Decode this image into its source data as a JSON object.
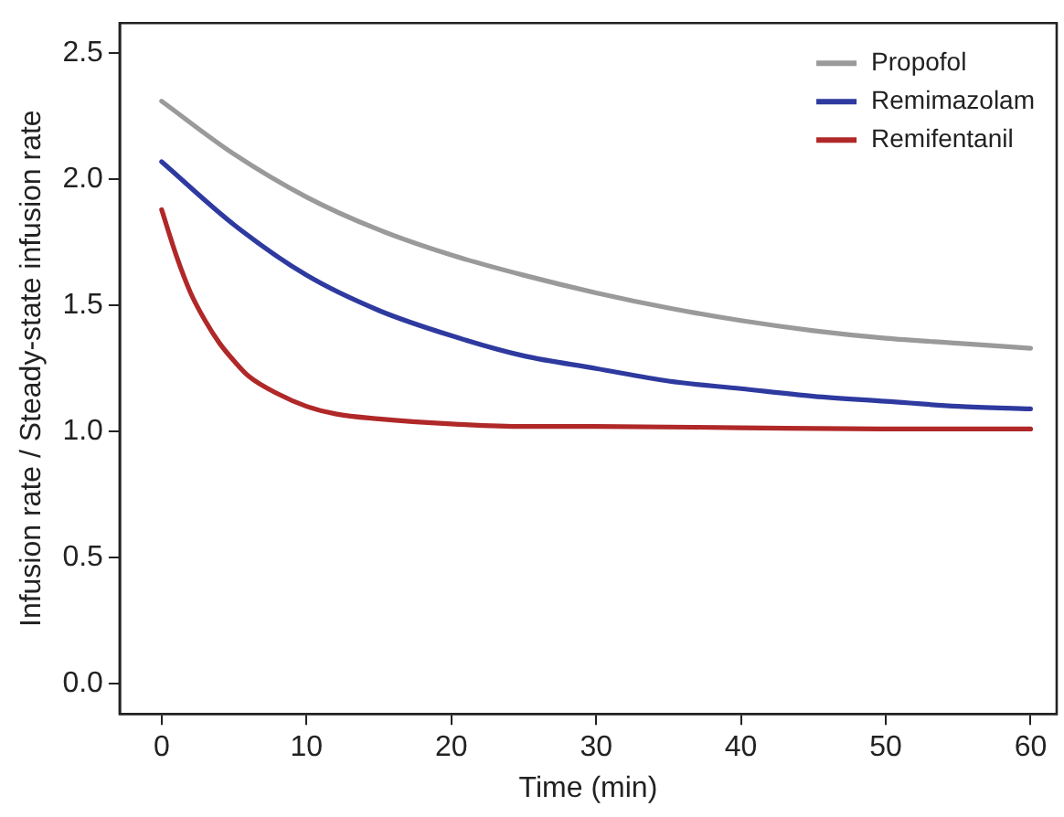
{
  "chart_data": {
    "type": "line",
    "xlabel": "Time (min)",
    "ylabel": "Infusion rate / Steady-state infusion rate",
    "xlim": [
      -2.9,
      61.8
    ],
    "xticks": [
      0,
      10,
      20,
      30,
      40,
      50,
      60
    ],
    "ylim": [
      -0.12,
      2.62
    ],
    "yticks": [
      {
        "value": 0,
        "label": "0.0"
      },
      0.5,
      {
        "value": 1,
        "label": "1.0"
      },
      1.5,
      {
        "value": 2,
        "label": "2.0"
      },
      2.5
    ],
    "grid": false,
    "legend": "top right",
    "marker": "none",
    "line_style": "solid",
    "series": [
      {
        "name": "Propofol",
        "color": "#9a9a9a",
        "x": [
          0,
          5,
          10,
          15,
          20,
          25,
          30,
          35,
          40,
          45,
          50,
          55,
          60
        ],
        "values": [
          2.31,
          2.1,
          1.93,
          1.8,
          1.7,
          1.62,
          1.55,
          1.49,
          1.44,
          1.4,
          1.37,
          1.35,
          1.33
        ]
      },
      {
        "name": "Remimazolam",
        "color": "#2e3a9f",
        "x": [
          0,
          5,
          10,
          15,
          20,
          25,
          30,
          35,
          40,
          45,
          50,
          55,
          60
        ],
        "values": [
          2.07,
          1.82,
          1.62,
          1.48,
          1.38,
          1.3,
          1.25,
          1.2,
          1.17,
          1.14,
          1.12,
          1.1,
          1.09
        ]
      },
      {
        "name": "Remifentanil",
        "color": "#b02828",
        "x": [
          0,
          1,
          2,
          3,
          4,
          5,
          6,
          8,
          10,
          12,
          15,
          20,
          25,
          30,
          40,
          50,
          60
        ],
        "values": [
          1.88,
          1.7,
          1.55,
          1.44,
          1.35,
          1.28,
          1.22,
          1.15,
          1.1,
          1.07,
          1.05,
          1.03,
          1.02,
          1.02,
          1.015,
          1.01,
          1.01
        ]
      }
    ]
  }
}
